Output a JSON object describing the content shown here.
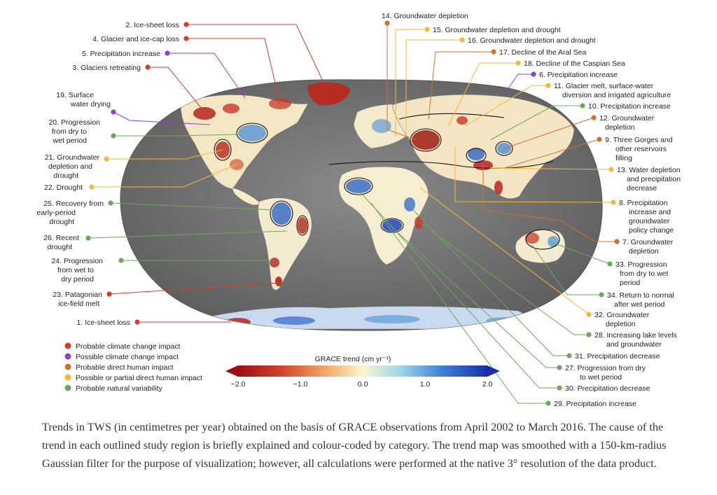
{
  "colors": {
    "climate": "#d93a2b",
    "possible_climate": "#8e3fd2",
    "direct_human": "#d2702a",
    "partial_human": "#f2b93b",
    "natural": "#6aa85a"
  },
  "legend": [
    {
      "label": "Probable climate change impact",
      "category": "climate"
    },
    {
      "label": "Possible climate change impact",
      "category": "possible_climate"
    },
    {
      "label": "Probable direct human impact",
      "category": "direct_human"
    },
    {
      "label": "Possible or partial direct human impact",
      "category": "partial_human"
    },
    {
      "label": "Probable natural variability",
      "category": "natural"
    }
  ],
  "colorbar": {
    "title": "GRACE trend (cm yr⁻¹)",
    "ticks": [
      "−2.0",
      "−1.0",
      "0.0",
      "1.0",
      "2.0"
    ],
    "range": [
      -2.0,
      2.0
    ]
  },
  "callouts": {
    "c1": "1. Ice-sheet loss",
    "c2": "2. Ice-sheet loss",
    "c3": "3. Glaciers retreating",
    "c4": "4. Glacier and ice-cap loss",
    "c5": "5. Precipitation increase",
    "c6": "6. Precipitation increase",
    "c7": [
      "7. Groundwater",
      "depletion"
    ],
    "c8": [
      "8. Precipitation",
      "increase and",
      "groundwater",
      "policy change"
    ],
    "c9": [
      "9. Three Gorges and",
      "other reservoirs",
      "filling"
    ],
    "c10": "10. Precipitation increase",
    "c11": [
      "11. Glacier melt, surface-water",
      "diversion and irrigated agriculture"
    ],
    "c12": [
      "12. Groundwater",
      "depletion"
    ],
    "c13": [
      "13. Water depletion",
      "and precipitation",
      "decrease"
    ],
    "c14": "14. Groundwater depletion",
    "c15": "15. Groundwater depletion and drought",
    "c16": "16. Groundwater depletion and drought",
    "c17": "17. Decline of the Aral Sea",
    "c18": "18. Decline of the Caspian Sea",
    "c19": [
      "19. Surface",
      "water drying"
    ],
    "c20": [
      "20. Progression",
      "from dry to",
      "wet period"
    ],
    "c21": [
      "21. Groundwater",
      "depletion and",
      "drought"
    ],
    "c22": "22. Drought",
    "c23": [
      "23. Patagonian",
      "ice-field melt"
    ],
    "c24": [
      "24. Progression",
      "from wet to",
      "dry period"
    ],
    "c25": [
      "25. Recovery from",
      "early-period",
      "drought"
    ],
    "c26": [
      "26. Recent",
      "drought"
    ],
    "c27": [
      "27. Progression from dry",
      "to wet period"
    ],
    "c28": [
      "28. Increasing lake levels",
      "and groundwater"
    ],
    "c29": "29. Precipitation increase",
    "c30": "30. Precipitation decrease",
    "c31": "31. Precipitation decrease",
    "c32": [
      "32. Groundwater",
      "depletion"
    ],
    "c33": [
      "33. Progression",
      "from dry to wet",
      "period"
    ],
    "c34": [
      "34. Return to normal",
      "after wet period"
    ]
  },
  "caption": "Trends in TWS (in centimetres per year) obtained on the basis of GRACE observations from April 2002 to March 2016. The cause of the trend in each outlined study region is briefly explained and colour-coded by category. The trend map was smoothed with a 150-km-radius Gaussian filter for the purpose of visualization; however, all calculations were performed at the native 3° resolution of the data product."
}
